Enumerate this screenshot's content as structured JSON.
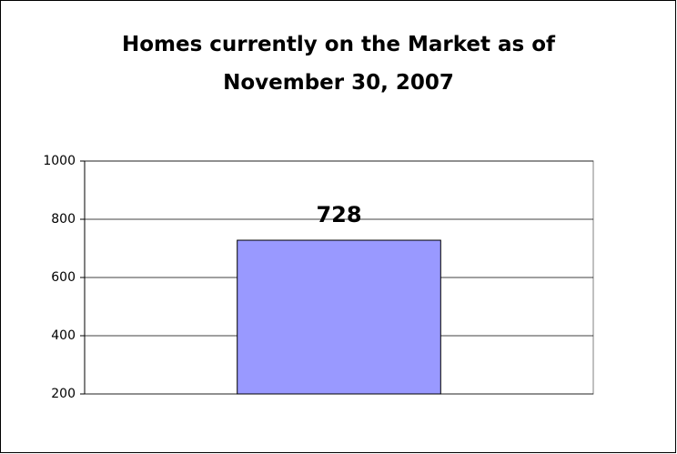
{
  "chart_data": {
    "type": "bar",
    "title": "Homes currently on the Market as of November 30, 2007",
    "categories": [
      null
    ],
    "values": [
      728
    ],
    "color": "#9999ff",
    "ylim": [
      200,
      1000
    ],
    "yticks": [
      200,
      400,
      600,
      800,
      1000
    ],
    "grid": true
  }
}
